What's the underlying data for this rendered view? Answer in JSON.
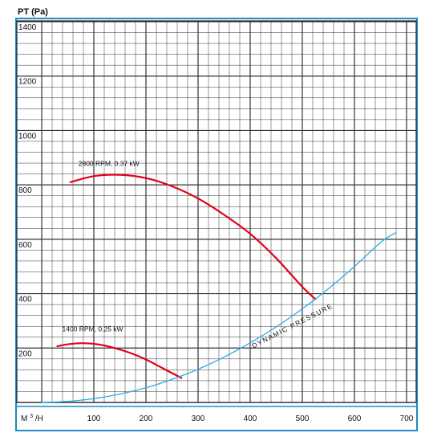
{
  "chart_data": {
    "type": "line",
    "ylabel": "PT (Pa)",
    "xlabel_prefix": "M",
    "xlabel_sup": "3",
    "xlabel_suffix": "/H",
    "xlim": [
      0,
      700
    ],
    "ylim": [
      0,
      1400
    ],
    "x_ticks": [
      "100",
      "200",
      "300",
      "400",
      "500",
      "600",
      "700"
    ],
    "y_ticks": [
      "200",
      "400",
      "600",
      "800",
      "1000",
      "1200",
      "1400"
    ],
    "grid": true,
    "series": [
      {
        "name": "2800 RPM, 0.37 kW",
        "color": "#e3001b",
        "x": [
          55,
          100,
          150,
          200,
          250,
          300,
          350,
          400,
          450,
          500,
          525
        ],
        "y": [
          810,
          832,
          837,
          825,
          795,
          750,
          690,
          620,
          530,
          425,
          380
        ]
      },
      {
        "name": "1400 RPM, 0.25 kW",
        "color": "#e3001b",
        "x": [
          30,
          55,
          80,
          110,
          140,
          170,
          200,
          230,
          268
        ],
        "y": [
          207,
          215,
          218,
          213,
          200,
          182,
          158,
          128,
          90
        ]
      },
      {
        "name": "DYNAMIC PRESSURE",
        "color": "#29abe2",
        "x": [
          0,
          50,
          100,
          150,
          200,
          250,
          300,
          350,
          400,
          450,
          500,
          550,
          600,
          650,
          680
        ],
        "y": [
          0,
          4,
          14,
          31,
          54,
          85,
          122,
          167,
          219,
          278,
          344,
          418,
          500,
          588,
          625
        ]
      }
    ],
    "annotations": [
      {
        "text": "2800 RPM, 0.37 kW",
        "x": 55,
        "y": 870
      },
      {
        "text": "1400 RPM, 0.25 kW",
        "x": 30,
        "y": 262
      }
    ],
    "curve_label": {
      "text": "DYNAMIC PRESSURE",
      "x": 400,
      "y": 205
    }
  }
}
